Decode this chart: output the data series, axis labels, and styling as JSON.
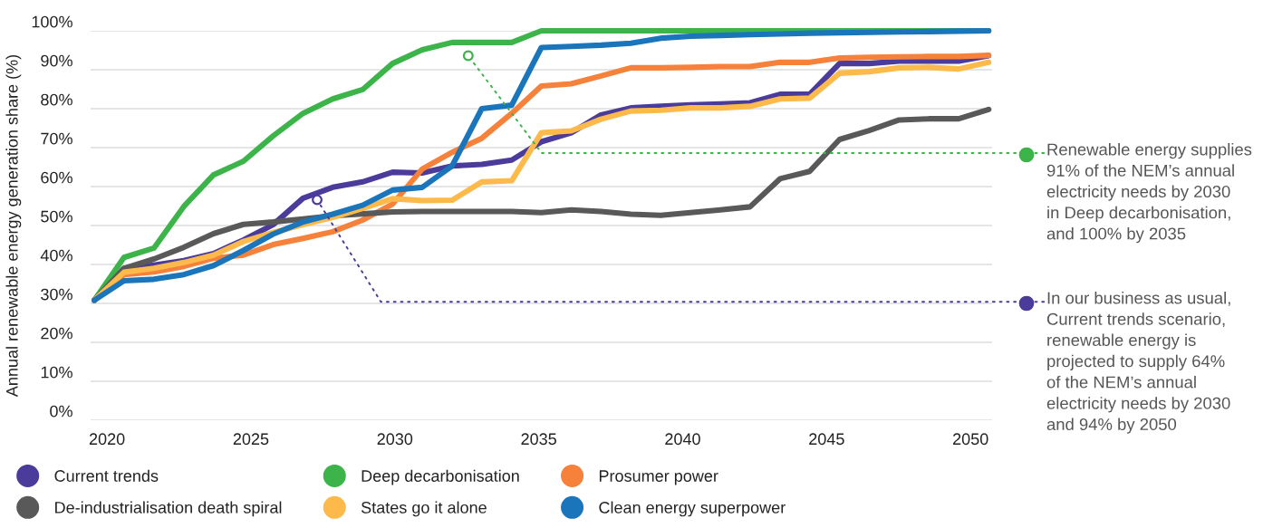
{
  "chart_data": {
    "type": "line",
    "ylabel": "Annual renewable energy generation share (%)",
    "x": [
      2019.56,
      2020.59,
      2021.63,
      2022.67,
      2023.7,
      2024.74,
      2025.77,
      2026.81,
      2027.84,
      2028.88,
      2029.92,
      2030.95,
      2031.99,
      2033.02,
      2034.06,
      2035.09,
      2036.13,
      2037.16,
      2038.2,
      2039.24,
      2040.27,
      2041.31,
      2042.34,
      2043.38,
      2044.41,
      2045.45,
      2046.48,
      2047.52,
      2048.55,
      2049.59,
      2050.63
    ],
    "series": [
      {
        "name": "Current trends",
        "color": "#4b3b9a",
        "values": [
          30.8,
          39,
          39.8,
          41,
          42.8,
          46.3,
          50.2,
          57,
          59.8,
          61.2,
          63.7,
          63.5,
          65.3,
          65.7,
          66.8,
          71.5,
          73.8,
          78.4,
          80.2,
          80.6,
          81,
          81.2,
          81.5,
          83.7,
          83.7,
          91.6,
          91.6,
          92.2,
          92.2,
          92.2,
          93.6
        ]
      },
      {
        "name": "Deep decarbonisation",
        "color": "#3cb44a",
        "values": [
          30.8,
          41.8,
          44.2,
          54.9,
          63,
          66.5,
          73,
          78.8,
          82.5,
          84.9,
          91.6,
          95.1,
          97,
          97,
          97,
          100,
          100,
          100,
          100,
          100,
          100,
          100,
          100,
          100,
          100,
          100,
          100,
          100,
          100,
          100,
          100
        ]
      },
      {
        "name": "Prosumer power",
        "color": "#f5813a",
        "values": [
          30.8,
          37.4,
          38.1,
          39.5,
          41.6,
          42.4,
          45.1,
          46.7,
          48.4,
          51.4,
          55.5,
          64.5,
          68.8,
          72.4,
          78.8,
          85.8,
          86.4,
          88.4,
          90.5,
          90.5,
          90.6,
          90.8,
          90.8,
          91.9,
          91.9,
          93,
          93.2,
          93.3,
          93.4,
          93.4,
          93.7
        ]
      },
      {
        "name": "De-industrialisation death spiral",
        "color": "#595959",
        "values": [
          30.8,
          39,
          41.4,
          44.4,
          47.9,
          50.3,
          50.9,
          51.7,
          52.5,
          53,
          53.5,
          53.6,
          53.6,
          53.6,
          53.6,
          53.3,
          54,
          53.6,
          52.9,
          52.6,
          53.3,
          54,
          54.8,
          62,
          63.9,
          72.1,
          74.4,
          77.1,
          77.4,
          77.4,
          79.8
        ]
      },
      {
        "name": "States go it alone",
        "color": "#fdb94a",
        "values": [
          30.8,
          38,
          39,
          40.5,
          42.4,
          45.9,
          48.2,
          50.2,
          52.1,
          54.4,
          56.9,
          56.4,
          56.5,
          61.2,
          61.5,
          73.8,
          74.3,
          77.3,
          79.4,
          79.6,
          80.2,
          80.2,
          80.6,
          82.5,
          82.7,
          89.1,
          89.5,
          90.5,
          90.6,
          90.2,
          91.9
        ]
      },
      {
        "name": "Clean energy superpower",
        "color": "#1a75bb",
        "values": [
          30.8,
          35.8,
          36.2,
          37.4,
          39.7,
          43.6,
          47.8,
          50.9,
          52.9,
          55.2,
          59.1,
          59.8,
          65.3,
          80,
          80.9,
          95.7,
          96,
          96.3,
          96.8,
          98.1,
          98.6,
          98.8,
          99,
          99.2,
          99.4,
          99.5,
          99.6,
          99.7,
          99.8,
          99.9,
          100
        ]
      }
    ],
    "xlim": [
      2019.43,
      2050.75
    ],
    "xticks": [
      2020,
      2025,
      2030,
      2035,
      2040,
      2045,
      2050
    ],
    "ylim": [
      0,
      100
    ],
    "yticks": [
      {
        "value": 0,
        "label": "0%"
      },
      {
        "value": 10,
        "label": "10%"
      },
      {
        "value": 20,
        "label": "20%"
      },
      {
        "value": 30,
        "label": "30%"
      },
      {
        "value": 40,
        "label": "40%"
      },
      {
        "value": 50,
        "label": "50%"
      },
      {
        "value": 60,
        "label": "60%"
      },
      {
        "value": 70,
        "label": "70%"
      },
      {
        "value": 80,
        "label": "80%"
      },
      {
        "value": 90,
        "label": "90%"
      },
      {
        "value": 100,
        "label": "100%"
      }
    ],
    "grid": "y",
    "legend": "bottom",
    "marker": "none",
    "line_style": "solid",
    "annotations": [
      {
        "text": "Renewable energy supplies\n91% of the NEM’s annual\nelectricity needs by 2030\nin Deep decarbonisation,\nand 100% by 2035",
        "x": 2032.55,
        "y": 93.6
      },
      {
        "text": "In our business as usual,\nCurrent trends scenario,\nrenewable energy is\nprojected to supply 64%\nof the NEM’s annual\nelectricity needs by 2030\nand 94% by 2050",
        "x": 2027.3,
        "y": 56.6
      }
    ]
  }
}
